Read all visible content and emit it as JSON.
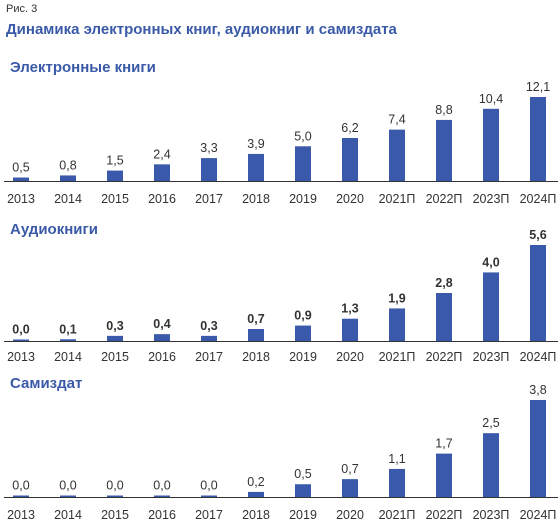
{
  "figure_label": "Рис. 3",
  "title": "Динамика электронных книг, аудиокниг и самиздата",
  "colors": {
    "bar": "#3a59aa",
    "title": "#3a5aa8",
    "axis": "#333333"
  },
  "chart_data": [
    {
      "type": "bar",
      "title": "Электронные книги",
      "categories": [
        "2013",
        "2014",
        "2015",
        "2016",
        "2017",
        "2018",
        "2019",
        "2020",
        "2021П",
        "2022П",
        "2023П",
        "2024П"
      ],
      "values": [
        0.5,
        0.8,
        1.5,
        2.4,
        3.3,
        3.9,
        5.0,
        6.2,
        7.4,
        8.8,
        10.4,
        12.1
      ],
      "value_labels": [
        "0,5",
        "0,8",
        "1,5",
        "2,4",
        "3,3",
        "3,9",
        "5,0",
        "6,2",
        "7,4",
        "8,8",
        "10,4",
        "12,1"
      ],
      "label_weight": "normal"
    },
    {
      "type": "bar",
      "title": "Аудиокниги",
      "categories": [
        "2013",
        "2014",
        "2015",
        "2016",
        "2017",
        "2018",
        "2019",
        "2020",
        "2021П",
        "2022П",
        "2023П",
        "2024П"
      ],
      "values": [
        0.0,
        0.1,
        0.3,
        0.4,
        0.3,
        0.7,
        0.9,
        1.3,
        1.9,
        2.8,
        4.0,
        5.6
      ],
      "value_labels": [
        "0,0",
        "0,1",
        "0,3",
        "0,4",
        "0,3",
        "0,7",
        "0,9",
        "1,3",
        "1,9",
        "2,8",
        "4,0",
        "5,6"
      ],
      "label_weight": "bold"
    },
    {
      "type": "bar",
      "title": "Самиздат",
      "categories": [
        "2013",
        "2014",
        "2015",
        "2016",
        "2017",
        "2018",
        "2019",
        "2020",
        "2021П",
        "2022П",
        "2023П",
        "2024П"
      ],
      "values": [
        0.0,
        0.0,
        0.0,
        0.0,
        0.0,
        0.2,
        0.5,
        0.7,
        1.1,
        1.7,
        2.5,
        3.8
      ],
      "value_labels": [
        "0,0",
        "0,0",
        "0,0",
        "0,0",
        "0,0",
        "0,2",
        "0,5",
        "0,7",
        "1,1",
        "1,7",
        "2,5",
        "3,8"
      ],
      "label_weight": "normal"
    }
  ]
}
